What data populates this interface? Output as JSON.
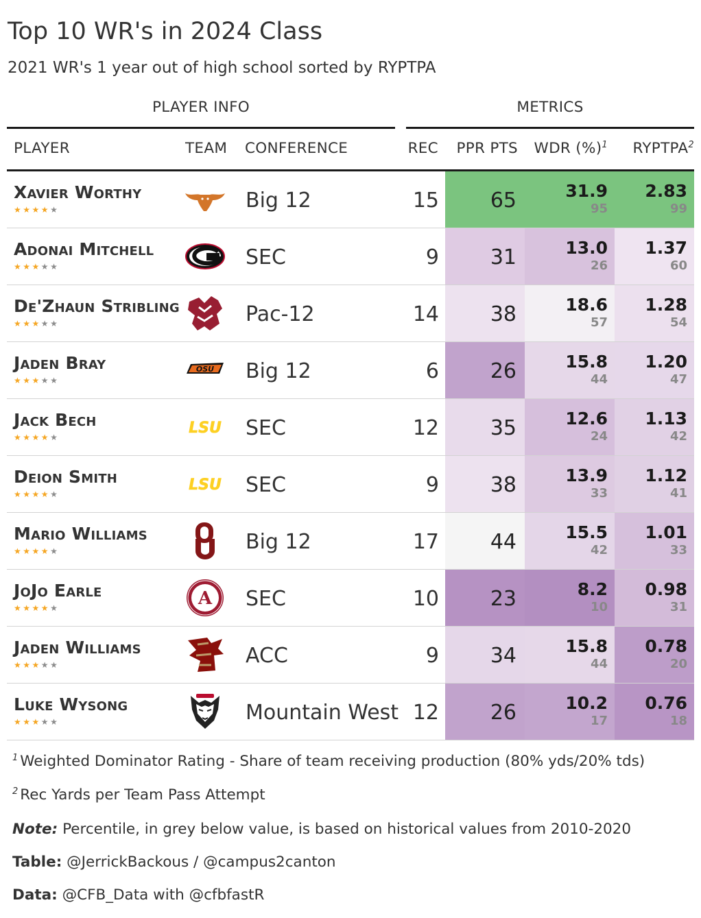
{
  "title": "Top 10 WR's in 2024 Class",
  "subtitle": "2021 WR's 1 year out of high school sorted by RYPTPA",
  "spanners": {
    "player_info": "PLAYER INFO",
    "metrics": "METRICS"
  },
  "columns": {
    "player": "PLAYER",
    "team": "TEAM",
    "conference": "CONFERENCE",
    "rec": "REC",
    "ppr": "PPR PTS",
    "wdr": "WDR (%)",
    "wdr_sup": "1",
    "ryptpa": "RYPTPA",
    "ryptpa_sup": "2"
  },
  "rows": [
    {
      "name": "Xavier Worthy",
      "stars": 4,
      "team_icon": "texas-longhorn-icon",
      "conference": "Big 12",
      "rec": "15",
      "ppr": "65",
      "wdr": "31.9",
      "wdr_pct": "95",
      "ryptpa": "2.83",
      "ryptpa_pct": "99",
      "ppr_color": "#7bc47f",
      "wdr_color": "#7bc47f",
      "ryptpa_color": "#7bc47f"
    },
    {
      "name": "Adonai Mitchell",
      "stars": 3,
      "team_icon": "georgia-g-icon",
      "conference": "SEC",
      "rec": "9",
      "ppr": "31",
      "wdr": "13.0",
      "wdr_pct": "26",
      "ryptpa": "1.37",
      "ryptpa_pct": "60",
      "ppr_color": "#dfcbe3",
      "wdr_color": "#d8c2dd",
      "ryptpa_color": "#efe4f1"
    },
    {
      "name": "De'Zhaun Stribling",
      "stars": 3,
      "team_icon": "washington-state-cougar-icon",
      "conference": "Pac-12",
      "rec": "14",
      "ppr": "38",
      "wdr": "18.6",
      "wdr_pct": "57",
      "ryptpa": "1.28",
      "ryptpa_pct": "54",
      "ppr_color": "#ede2ef",
      "wdr_color": "#f3f0f4",
      "ryptpa_color": "#ece0ee"
    },
    {
      "name": "Jaden Bray",
      "stars": 3,
      "team_icon": "oklahoma-state-osu-icon",
      "conference": "Big 12",
      "rec": "6",
      "ppr": "26",
      "wdr": "15.8",
      "wdr_pct": "44",
      "ryptpa": "1.20",
      "ryptpa_pct": "47",
      "ppr_color": "#c1a3cc",
      "wdr_color": "#e6d8e9",
      "ryptpa_color": "#e6d8ea"
    },
    {
      "name": "Jack Bech",
      "stars": 4,
      "team_icon": "lsu-logo-icon",
      "conference": "SEC",
      "rec": "12",
      "ppr": "35",
      "wdr": "12.6",
      "wdr_pct": "24",
      "ryptpa": "1.13",
      "ryptpa_pct": "42",
      "ppr_color": "#e8dbeb",
      "wdr_color": "#d6bfdc",
      "ryptpa_color": "#e1d1e5"
    },
    {
      "name": "Deion Smith",
      "stars": 4,
      "team_icon": "lsu-logo-icon",
      "conference": "SEC",
      "rec": "9",
      "ppr": "38",
      "wdr": "13.9",
      "wdr_pct": "33",
      "ryptpa": "1.12",
      "ryptpa_pct": "41",
      "ppr_color": "#ede2ef",
      "wdr_color": "#ddcae1",
      "ryptpa_color": "#e0d0e4"
    },
    {
      "name": "Mario Williams",
      "stars": 4,
      "team_icon": "oklahoma-ou-icon",
      "conference": "Big 12",
      "rec": "17",
      "ppr": "44",
      "wdr": "15.5",
      "wdr_pct": "42",
      "ryptpa": "1.01",
      "ryptpa_pct": "33",
      "ppr_color": "#f5f5f5",
      "wdr_color": "#e4d6e8",
      "ryptpa_color": "#d6c0dc"
    },
    {
      "name": "JoJo Earle",
      "stars": 4,
      "team_icon": "alabama-crimson-tide-icon",
      "conference": "SEC",
      "rec": "10",
      "ppr": "23",
      "wdr": "8.2",
      "wdr_pct": "10",
      "ryptpa": "0.98",
      "ryptpa_pct": "31",
      "ppr_color": "#b692c3",
      "wdr_color": "#b38fc1",
      "ryptpa_color": "#d3bbd9"
    },
    {
      "name": "Jaden Williams",
      "stars": 3,
      "team_icon": "boston-college-eagle-icon",
      "conference": "ACC",
      "rec": "9",
      "ppr": "34",
      "wdr": "15.8",
      "wdr_pct": "44",
      "ryptpa": "0.78",
      "ryptpa_pct": "20",
      "ppr_color": "#e5d7e9",
      "wdr_color": "#e6d8e9",
      "ryptpa_color": "#bd9dc9"
    },
    {
      "name": "Luke Wysong",
      "stars": 3,
      "team_icon": "new-mexico-lobo-icon",
      "conference": "Mountain West",
      "rec": "12",
      "ppr": "26",
      "wdr": "10.2",
      "wdr_pct": "17",
      "ryptpa": "0.76",
      "ryptpa_pct": "18",
      "ppr_color": "#c1a3cc",
      "wdr_color": "#c3a6ce",
      "ryptpa_color": "#b895c5"
    }
  ],
  "footnotes": {
    "fn1_mark": "1",
    "fn1": "Weighted Dominator Rating - Share of team receiving production (80% yds/20% tds)",
    "fn2_mark": "2",
    "fn2": "Rec Yards per Team Pass Attempt",
    "note_label": "Note:",
    "note": " Percentile, in grey below value, is based on historical values from 2010-2020",
    "table_label": "Table:",
    "table": " @JerrickBackous / @campus2canton",
    "data_label": "Data:",
    "data": " @CFB_Data with @cfbfastR"
  },
  "colors": {
    "star_on": "#f5a623",
    "star_off": "#8c8c8c",
    "rule": "#1a1a1a"
  }
}
